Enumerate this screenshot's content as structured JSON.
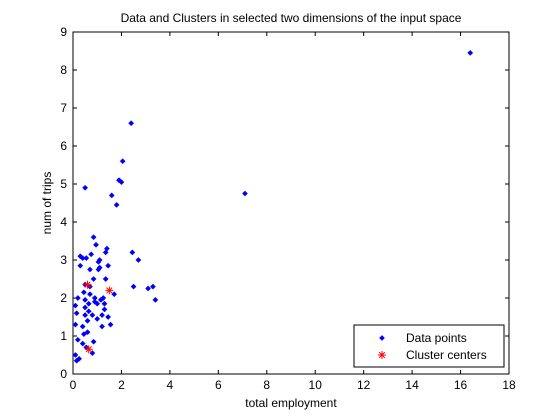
{
  "chart_data": {
    "type": "scatter",
    "title": "Data and Clusters in selected two dimensions of the input space",
    "xlabel": "total employment",
    "ylabel": "num of trips",
    "xlim": [
      0,
      18
    ],
    "ylim": [
      0,
      9
    ],
    "xticks": [
      0,
      2,
      4,
      6,
      8,
      10,
      12,
      14,
      16,
      18
    ],
    "yticks": [
      0,
      1,
      2,
      3,
      4,
      5,
      6,
      7,
      8,
      9
    ],
    "grid": false,
    "legend_position": "bottom-right",
    "series": [
      {
        "name": "Data points",
        "marker": "dot",
        "color": "#0000ff",
        "points": [
          [
            0.1,
            0.5
          ],
          [
            0.15,
            0.35
          ],
          [
            0.2,
            0.9
          ],
          [
            0.25,
            0.4
          ],
          [
            0.1,
            1.3
          ],
          [
            0.15,
            1.6
          ],
          [
            0.1,
            1.8
          ],
          [
            0.2,
            2.0
          ],
          [
            0.3,
            2.85
          ],
          [
            0.3,
            3.1
          ],
          [
            0.4,
            3.05
          ],
          [
            0.4,
            0.8
          ],
          [
            0.45,
            1.05
          ],
          [
            0.4,
            1.25
          ],
          [
            0.5,
            1.55
          ],
          [
            0.5,
            1.75
          ],
          [
            0.5,
            1.95
          ],
          [
            0.45,
            2.15
          ],
          [
            0.5,
            2.35
          ],
          [
            0.55,
            3.05
          ],
          [
            0.5,
            4.9
          ],
          [
            0.55,
            0.7
          ],
          [
            0.6,
            1.1
          ],
          [
            0.6,
            1.4
          ],
          [
            0.65,
            1.65
          ],
          [
            0.65,
            1.85
          ],
          [
            0.7,
            2.1
          ],
          [
            0.7,
            2.3
          ],
          [
            0.7,
            2.75
          ],
          [
            0.75,
            3.15
          ],
          [
            0.8,
            0.55
          ],
          [
            0.85,
            0.85
          ],
          [
            0.8,
            1.55
          ],
          [
            0.85,
            2.5
          ],
          [
            0.85,
            3.6
          ],
          [
            0.9,
            1.9
          ],
          [
            0.9,
            2.0
          ],
          [
            0.95,
            3.4
          ],
          [
            1.0,
            1.45
          ],
          [
            1.0,
            1.85
          ],
          [
            1.05,
            2.75
          ],
          [
            1.05,
            2.95
          ],
          [
            1.1,
            2.8
          ],
          [
            1.1,
            3.0
          ],
          [
            1.15,
            1.95
          ],
          [
            1.2,
            1.25
          ],
          [
            1.2,
            1.55
          ],
          [
            1.25,
            2.0
          ],
          [
            1.3,
            1.7
          ],
          [
            1.3,
            1.85
          ],
          [
            1.35,
            2.5
          ],
          [
            1.35,
            3.2
          ],
          [
            1.4,
            3.3
          ],
          [
            1.45,
            1.5
          ],
          [
            1.45,
            2.85
          ],
          [
            1.55,
            1.3
          ],
          [
            1.6,
            4.7
          ],
          [
            1.7,
            2.1
          ],
          [
            1.8,
            4.45
          ],
          [
            1.9,
            5.1
          ],
          [
            2.0,
            5.05
          ],
          [
            2.05,
            5.6
          ],
          [
            2.4,
            6.6
          ],
          [
            2.45,
            3.2
          ],
          [
            2.5,
            2.3
          ],
          [
            2.7,
            3.0
          ],
          [
            3.1,
            2.25
          ],
          [
            3.3,
            2.3
          ],
          [
            3.4,
            1.95
          ],
          [
            7.1,
            4.75
          ],
          [
            16.4,
            8.45
          ]
        ]
      },
      {
        "name": "Cluster centers",
        "marker": "asterisk",
        "color": "#ff0000",
        "points": [
          [
            0.6,
            2.35
          ],
          [
            1.5,
            2.2
          ],
          [
            0.65,
            0.65
          ]
        ]
      }
    ]
  }
}
